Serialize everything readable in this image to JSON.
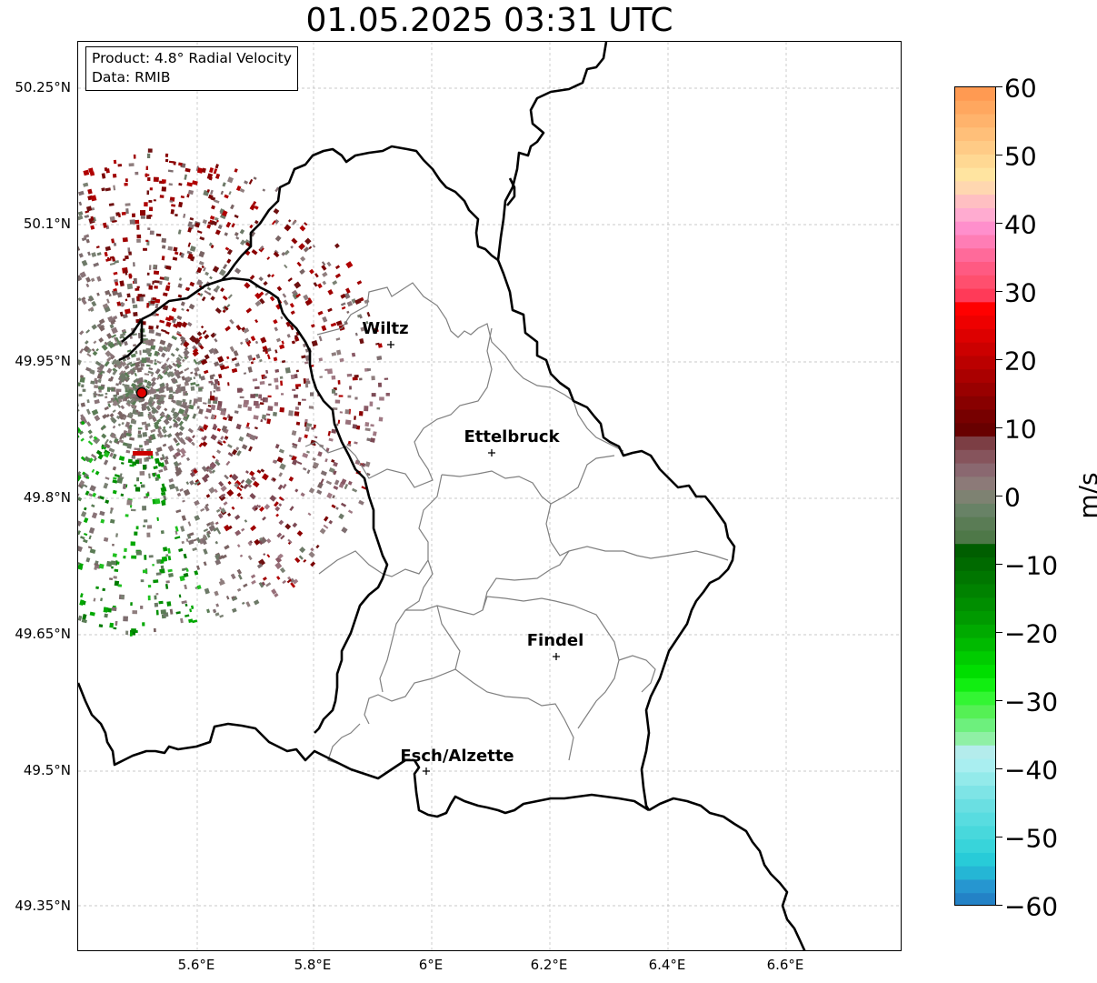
{
  "title": "01.05.2025 03:31 UTC",
  "info_box": {
    "product": "Product: 4.8° Radial Velocity",
    "data": "Data: RMIB"
  },
  "map": {
    "lat_labels": [
      "50.25°N",
      "50.1°N",
      "49.95°N",
      "49.8°N",
      "49.65°N",
      "49.5°N",
      "49.35°N"
    ],
    "lon_labels": [
      "5.6°E",
      "5.8°E",
      "6°E",
      "6.2°E",
      "6.4°E",
      "6.6°E"
    ],
    "cities": [
      {
        "name": "Wiltz",
        "lon": 5.93,
        "lat": 49.966
      },
      {
        "name": "Ettelbruck",
        "lon": 6.1,
        "lat": 49.847
      },
      {
        "name": "Findel",
        "lon": 6.21,
        "lat": 49.627
      },
      {
        "name": "Esch/Alzette",
        "lon": 5.99,
        "lat": 49.5
      }
    ],
    "radar_site": {
      "lon": 5.506,
      "lat": 49.914
    },
    "colors": {
      "border": "#000000",
      "canton_lines": "#808080",
      "grid": "#b0b0b0",
      "radar_marker": "#e00000"
    }
  },
  "colorbar": {
    "unit": "m/s",
    "ticks": [
      "60",
      "50",
      "40",
      "30",
      "20",
      "10",
      "0",
      "−10",
      "−20",
      "−30",
      "−40",
      "−50",
      "−60"
    ],
    "range": [
      -60,
      60
    ]
  }
}
